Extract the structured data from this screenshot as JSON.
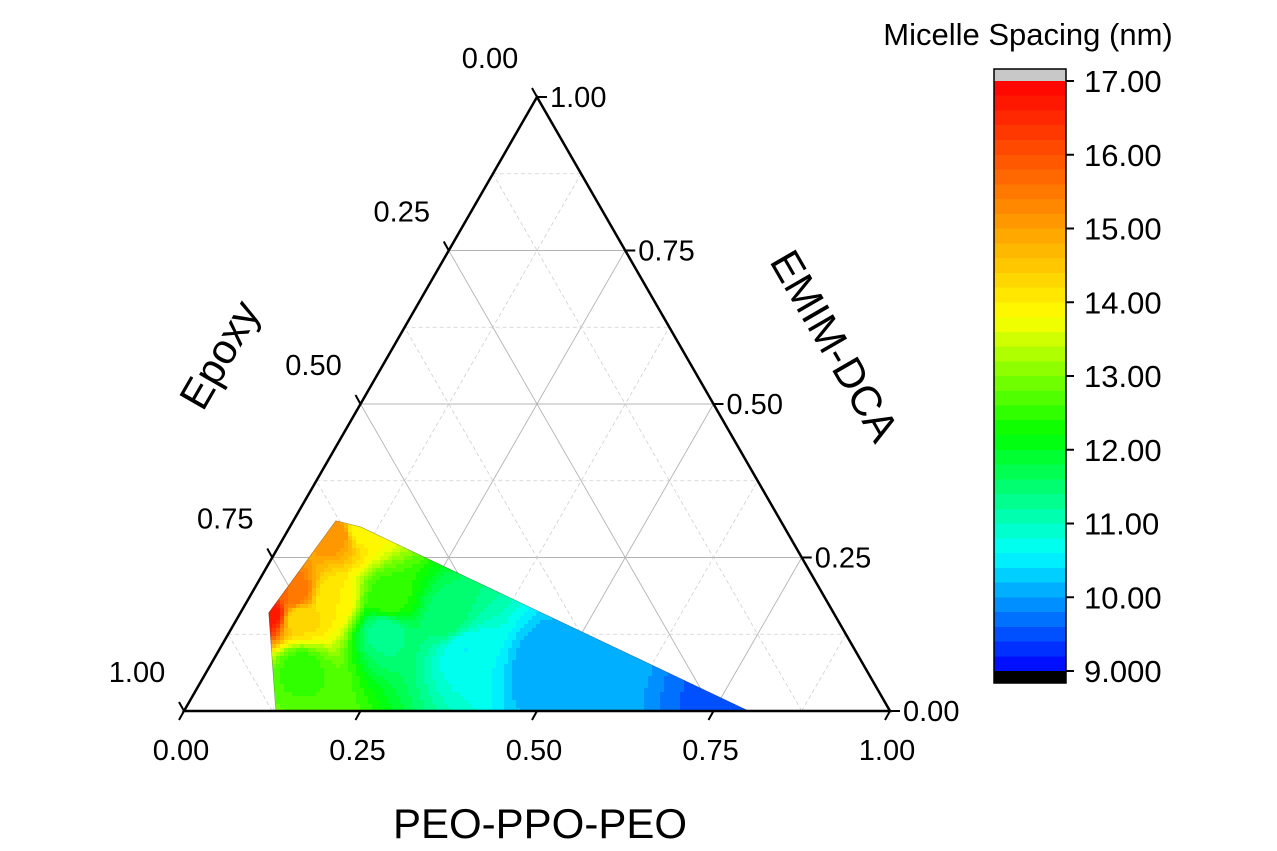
{
  "chart_data": {
    "type": "ternary-contour",
    "axes": {
      "bottom": {
        "label": "PEO-PPO-PEO",
        "ticks": [
          "0.00",
          "0.25",
          "0.50",
          "0.75",
          "1.00"
        ]
      },
      "left": {
        "label": "Epoxy",
        "ticks": [
          "0.00",
          "0.25",
          "0.50",
          "0.75",
          "1.00"
        ]
      },
      "right": {
        "label": "EMIM-DCA",
        "ticks": [
          "0.00",
          "0.25",
          "0.50",
          "0.75",
          "1.00"
        ]
      }
    },
    "grid": true,
    "colorbar": {
      "title": "Micelle Spacing (nm)",
      "range": [
        9,
        17
      ],
      "ticks": [
        "17.00",
        "16.00",
        "15.00",
        "14.00",
        "13.00",
        "12.00",
        "11.00",
        "10.00",
        "9.000"
      ],
      "tick_values": [
        17,
        16,
        15,
        14,
        13,
        12,
        11,
        10,
        9
      ],
      "colormap": [
        "#0000ff",
        "#00ffff",
        "#00ff00",
        "#ffff00",
        "#ff8000",
        "#ff0000"
      ],
      "over_color": "#c8c8c8",
      "under_color": "#000000"
    },
    "region_vertices": [
      {
        "peo_ppo_peo": 0.8,
        "epoxy": 0.2,
        "emim_dca": 0.0
      },
      {
        "peo_ppo_peo": 0.13,
        "epoxy": 0.87,
        "emim_dca": 0.0
      },
      {
        "peo_ppo_peo": 0.04,
        "epoxy": 0.8,
        "emim_dca": 0.16
      },
      {
        "peo_ppo_peo": 0.06,
        "epoxy": 0.63,
        "emim_dca": 0.31
      },
      {
        "peo_ppo_peo": 0.1,
        "epoxy": 0.6,
        "emim_dca": 0.3
      }
    ],
    "samples": [
      {
        "peo_ppo_peo": 0.8,
        "epoxy": 0.2,
        "emim_dca": 0.0,
        "spacing": 9.5
      },
      {
        "peo_ppo_peo": 0.48,
        "epoxy": 0.45,
        "emim_dca": 0.07,
        "spacing": 10.0
      },
      {
        "peo_ppo_peo": 0.35,
        "epoxy": 0.55,
        "emim_dca": 0.1,
        "spacing": 10.6
      },
      {
        "peo_ppo_peo": 0.22,
        "epoxy": 0.65,
        "emim_dca": 0.13,
        "spacing": 11.3
      },
      {
        "peo_ppo_peo": 0.13,
        "epoxy": 0.8,
        "emim_dca": 0.07,
        "spacing": 12.5
      },
      {
        "peo_ppo_peo": 0.3,
        "epoxy": 0.55,
        "emim_dca": 0.15,
        "spacing": 11.5
      },
      {
        "peo_ppo_peo": 0.2,
        "epoxy": 0.62,
        "emim_dca": 0.18,
        "spacing": 12.5
      },
      {
        "peo_ppo_peo": 0.12,
        "epoxy": 0.7,
        "emim_dca": 0.18,
        "spacing": 14.0
      },
      {
        "peo_ppo_peo": 0.1,
        "epoxy": 0.6,
        "emim_dca": 0.3,
        "spacing": 13.8
      },
      {
        "peo_ppo_peo": 0.07,
        "epoxy": 0.64,
        "emim_dca": 0.29,
        "spacing": 15.2
      },
      {
        "peo_ppo_peo": 0.04,
        "epoxy": 0.8,
        "emim_dca": 0.16,
        "spacing": 16.8
      },
      {
        "peo_ppo_peo": 0.06,
        "epoxy": 0.75,
        "emim_dca": 0.19,
        "spacing": 15.6
      },
      {
        "peo_ppo_peo": 0.09,
        "epoxy": 0.76,
        "emim_dca": 0.15,
        "spacing": 14.2
      }
    ]
  }
}
